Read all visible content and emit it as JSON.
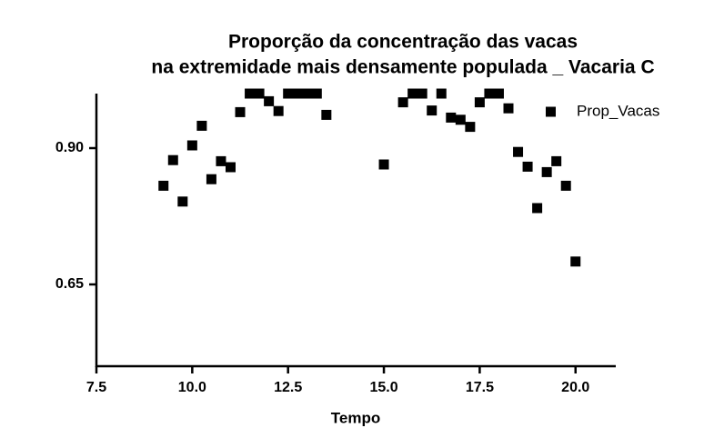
{
  "chart_data": {
    "type": "scatter",
    "title": [
      "Proporção da concentração das vacas",
      "na extremidade mais densamente populada _ Vacaria C"
    ],
    "x_label": "Tempo",
    "xlim": [
      7.5,
      21.05
    ],
    "xticks": [
      7.5,
      {
        "value": 10.0,
        "label": "10.0"
      },
      12.5,
      {
        "value": 15.0,
        "label": "15.0"
      },
      17.5,
      {
        "value": 20.0,
        "label": "20.0"
      }
    ],
    "ylim": [
      0.5,
      1.0
    ],
    "yticks": [
      0.65,
      {
        "value": 0.9,
        "label": "0.90"
      }
    ],
    "grid": false,
    "legend": "upper right",
    "series": [
      {
        "name": "Prop_Vacas",
        "color": "#000000",
        "x": [
          9.25,
          9.5,
          9.75,
          10.0,
          10.25,
          10.5,
          10.75,
          11.0,
          11.25,
          11.5,
          11.75,
          12.0,
          12.25,
          12.5,
          12.75,
          13.0,
          13.25,
          13.5,
          15.0,
          15.5,
          15.75,
          16.0,
          16.25,
          16.5,
          16.75,
          17.0,
          17.25,
          17.5,
          17.75,
          18.0,
          18.25,
          18.5,
          18.75,
          19.0,
          19.25,
          19.5,
          19.75,
          20.0
        ],
        "values": [
          0.831,
          0.878,
          0.802,
          0.905,
          0.941,
          0.843,
          0.876,
          0.865,
          0.966,
          1.0,
          1.0,
          0.986,
          0.968,
          1.0,
          1.0,
          1.0,
          1.0,
          0.961,
          0.87,
          0.984,
          1.0,
          1.0,
          0.969,
          1.0,
          0.956,
          0.952,
          0.939,
          0.984,
          1.0,
          1.0,
          0.973,
          0.893,
          0.866,
          0.79,
          0.856,
          0.876,
          0.831,
          0.692
        ]
      }
    ]
  }
}
